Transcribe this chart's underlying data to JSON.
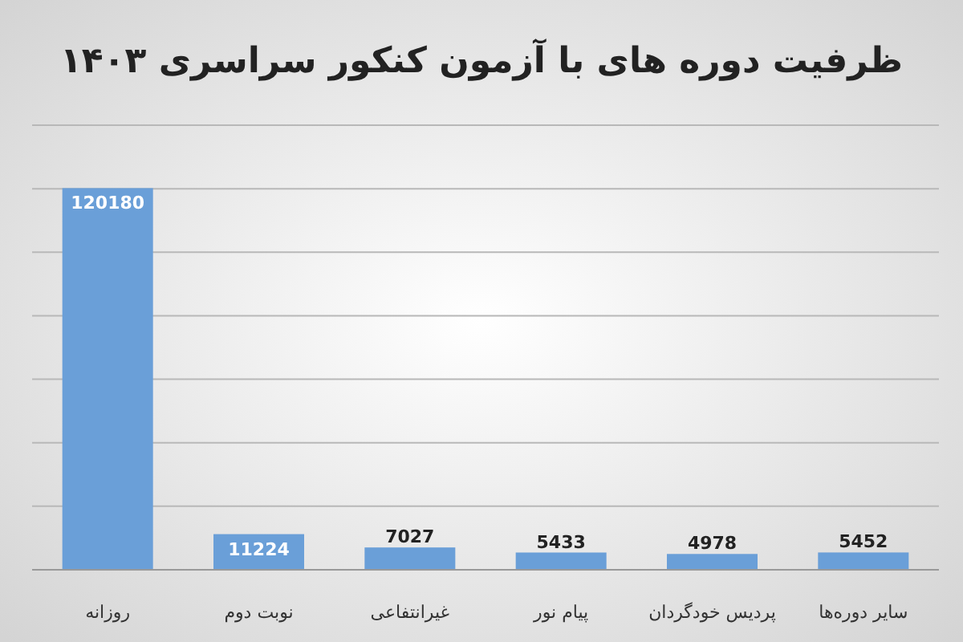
{
  "chart_data": {
    "type": "bar",
    "title": "ظرفیت دوره های با آزمون کنکور سراسری ۱۴۰۳",
    "categories": [
      "روزانه",
      "نوبت دوم",
      "غیرانتفاعی",
      "پیام نور",
      "پردیس خودگردان",
      "سایر دوره‌ها"
    ],
    "values": [
      120180,
      11224,
      7027,
      5433,
      4978,
      5452
    ],
    "color": "#6a9fd8",
    "ylim": [
      0,
      140000
    ],
    "yticks": [
      {
        "value": 0,
        "label": null
      },
      {
        "value": 20000,
        "label": null
      },
      {
        "value": 40000,
        "label": null
      },
      {
        "value": 60000,
        "label": null
      },
      {
        "value": 80000,
        "label": null
      },
      {
        "value": 100000,
        "label": null
      },
      {
        "value": 120000,
        "label": null
      },
      {
        "value": 140000,
        "label": null
      }
    ],
    "tick_labels": "x",
    "grid": "y",
    "data_labels": true
  }
}
